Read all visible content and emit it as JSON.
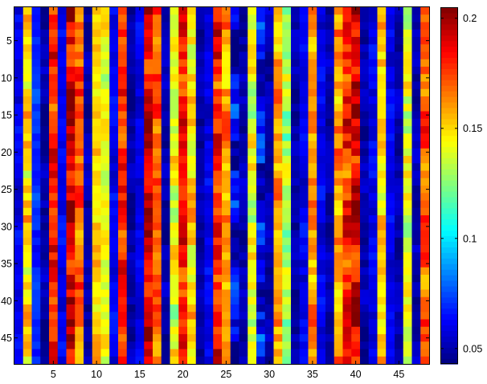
{
  "chart_data": {
    "type": "heatmap",
    "rows": 48,
    "cols": 48,
    "x_ticks": [
      5,
      10,
      15,
      20,
      25,
      30,
      35,
      40,
      45
    ],
    "y_ticks": [
      5,
      10,
      15,
      20,
      25,
      30,
      35,
      40,
      45
    ],
    "colorbar_ticks": [
      0.05,
      0.1,
      0.15,
      0.2
    ],
    "clim": [
      0.043,
      0.205
    ],
    "colormap": "jet",
    "grid": false,
    "colorbar_position": "right",
    "column_base_values": [
      0.06,
      0.15,
      0.07,
      0.05,
      0.18,
      0.06,
      0.19,
      0.17,
      0.05,
      0.15,
      0.14,
      0.06,
      0.18,
      0.05,
      0.06,
      0.19,
      0.17,
      0.05,
      0.14,
      0.18,
      0.15,
      0.05,
      0.06,
      0.18,
      0.16,
      0.06,
      0.05,
      0.14,
      0.06,
      0.05,
      0.16,
      0.13,
      0.05,
      0.06,
      0.16,
      0.06,
      0.05,
      0.16,
      0.18,
      0.19,
      0.05,
      0.06,
      0.15,
      0.06,
      0.05,
      0.14,
      0.05,
      0.17
    ],
    "column_variation": [
      0.01,
      0.02,
      0.01,
      0.01,
      0.02,
      0.01,
      0.025,
      0.02,
      0.01,
      0.015,
      0.015,
      0.01,
      0.02,
      0.01,
      0.01,
      0.025,
      0.02,
      0.01,
      0.02,
      0.02,
      0.02,
      0.01,
      0.01,
      0.025,
      0.02,
      0.03,
      0.01,
      0.02,
      0.03,
      0.01,
      0.02,
      0.02,
      0.01,
      0.01,
      0.02,
      0.01,
      0.01,
      0.02,
      0.025,
      0.025,
      0.01,
      0.01,
      0.02,
      0.01,
      0.01,
      0.02,
      0.01,
      0.02
    ]
  },
  "colors": {
    "background": "#ffffff",
    "frame": "#000000"
  }
}
